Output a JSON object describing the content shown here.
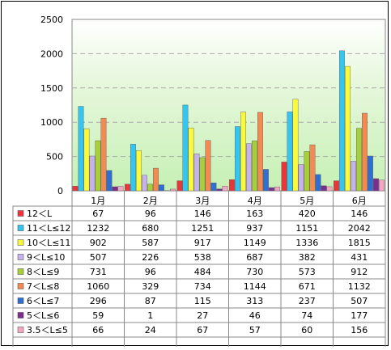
{
  "chart_data": {
    "type": "bar",
    "categories": [
      "1月",
      "2月",
      "3月",
      "4月",
      "5月",
      "6月"
    ],
    "ylim": [
      0,
      2500
    ],
    "yticks": [
      0,
      500,
      1000,
      1500,
      2000,
      2500
    ],
    "grid": true,
    "legend_position": "table-below",
    "series": [
      {
        "name": "12＜L",
        "color": "#e8363a",
        "values": [
          67,
          96,
          146,
          163,
          420,
          146
        ]
      },
      {
        "name": "11＜L≤12",
        "color": "#33c6f0",
        "values": [
          1232,
          680,
          1251,
          937,
          1151,
          2042
        ]
      },
      {
        "name": "10＜L≤11",
        "color": "#fafa3c",
        "values": [
          902,
          587,
          917,
          1149,
          1336,
          1815
        ]
      },
      {
        "name": "9＜L≤10",
        "color": "#c7b3ec",
        "values": [
          507,
          226,
          538,
          687,
          382,
          431
        ]
      },
      {
        "name": "8＜L≤9",
        "color": "#a6cf3a",
        "values": [
          731,
          96,
          484,
          730,
          573,
          912
        ]
      },
      {
        "name": "7＜L≤8",
        "color": "#f28a52",
        "values": [
          1060,
          329,
          734,
          1144,
          671,
          1132
        ]
      },
      {
        "name": "6＜L≤7",
        "color": "#2f6fd1",
        "values": [
          296,
          87,
          115,
          313,
          237,
          507
        ]
      },
      {
        "name": "5＜L≤6",
        "color": "#7a2f8f",
        "values": [
          59,
          1,
          27,
          46,
          74,
          177
        ]
      },
      {
        "name": "3.5＜L≤5",
        "color": "#f5a6c4",
        "values": [
          66,
          24,
          67,
          57,
          60,
          156
        ]
      }
    ]
  }
}
